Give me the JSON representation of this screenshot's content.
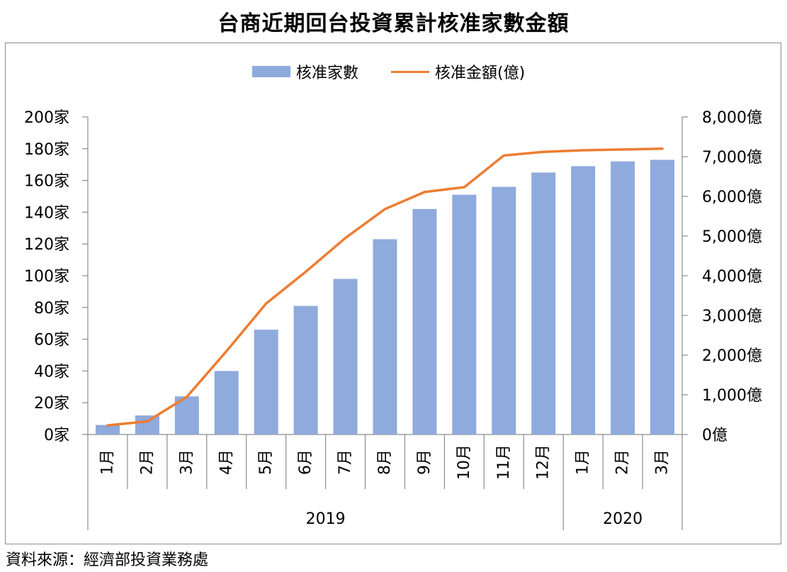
{
  "title": "台商近期回台投資累計核准家數金額",
  "source": "資料來源：經濟部投資業務處",
  "chart_data": {
    "type": "bar",
    "title": "台商近期回台投資累計核准家數金額",
    "categories": [
      "1月",
      "2月",
      "3月",
      "4月",
      "5月",
      "6月",
      "7月",
      "8月",
      "9月",
      "10月",
      "11月",
      "12月",
      "1月",
      "2月",
      "3月"
    ],
    "year_groups": [
      {
        "label": "2019",
        "start": 0,
        "count": 12
      },
      {
        "label": "2020",
        "start": 12,
        "count": 3
      }
    ],
    "series": [
      {
        "name": "核准家數",
        "type": "bar",
        "axis": "left",
        "color": "#8faadc",
        "values": [
          6,
          12,
          24,
          40,
          66,
          81,
          98,
          123,
          142,
          151,
          156,
          165,
          169,
          172,
          173
        ]
      },
      {
        "name": "核准金額(億)",
        "type": "line",
        "axis": "right",
        "color": "#ed7d31",
        "values": [
          230,
          330,
          950,
          2100,
          3300,
          4100,
          4950,
          5680,
          6110,
          6230,
          7030,
          7120,
          7160,
          7180,
          7200
        ]
      }
    ],
    "y_left": {
      "min": 0,
      "max": 200,
      "step": 20,
      "tick_labels": [
        "0家",
        "20家",
        "40家",
        "60家",
        "80家",
        "100家",
        "120家",
        "140家",
        "160家",
        "180家",
        "200家"
      ]
    },
    "y_right": {
      "min": 0,
      "max": 8000,
      "step": 1000,
      "tick_labels": [
        "0億",
        "1,000億",
        "2,000億",
        "3,000億",
        "4,000億",
        "5,000億",
        "6,000億",
        "7,000億",
        "8,000億"
      ]
    },
    "legend_position": "top-center",
    "grid": false
  }
}
